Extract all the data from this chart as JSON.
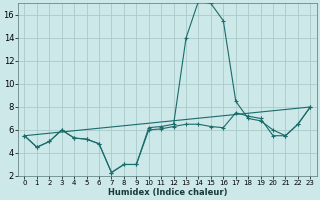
{
  "xlabel": "Humidex (Indice chaleur)",
  "bg_color": "#cce8e8",
  "grid_color": "#aacaca",
  "line_color": "#1a6b6b",
  "xlim": [
    -0.5,
    23.5
  ],
  "ylim": [
    2,
    17
  ],
  "xticks": [
    0,
    1,
    2,
    3,
    4,
    5,
    6,
    7,
    8,
    9,
    10,
    11,
    12,
    13,
    14,
    15,
    16,
    17,
    18,
    19,
    20,
    21,
    22,
    23
  ],
  "yticks": [
    2,
    4,
    6,
    8,
    10,
    12,
    14,
    16
  ],
  "series": [
    {
      "x": [
        0,
        1,
        2,
        3,
        4,
        5,
        6,
        7,
        8,
        9,
        10,
        11,
        12,
        13,
        14,
        15,
        16,
        17,
        18,
        19,
        20,
        21,
        22,
        23
      ],
      "y": [
        5.5,
        4.5,
        5.0,
        6.0,
        5.3,
        5.2,
        4.8,
        2.3,
        3.0,
        3.0,
        6.2,
        6.3,
        6.5,
        14.0,
        17.2,
        17.0,
        15.5,
        8.5,
        7.0,
        6.8,
        6.0,
        5.5,
        6.5,
        8.0
      ]
    },
    {
      "x": [
        0,
        1,
        2,
        3,
        4,
        5,
        6,
        7,
        8,
        9,
        10,
        11,
        12,
        13,
        14,
        15,
        16,
        17,
        18,
        19,
        20,
        21,
        22,
        23
      ],
      "y": [
        5.5,
        4.5,
        5.0,
        6.0,
        5.3,
        5.2,
        4.8,
        2.3,
        3.0,
        3.0,
        6.0,
        6.1,
        6.3,
        6.5,
        6.5,
        6.3,
        6.2,
        7.5,
        7.2,
        7.0,
        5.5,
        5.5,
        6.5,
        8.0
      ]
    },
    {
      "x": [
        0,
        23
      ],
      "y": [
        5.5,
        8.0
      ]
    }
  ]
}
